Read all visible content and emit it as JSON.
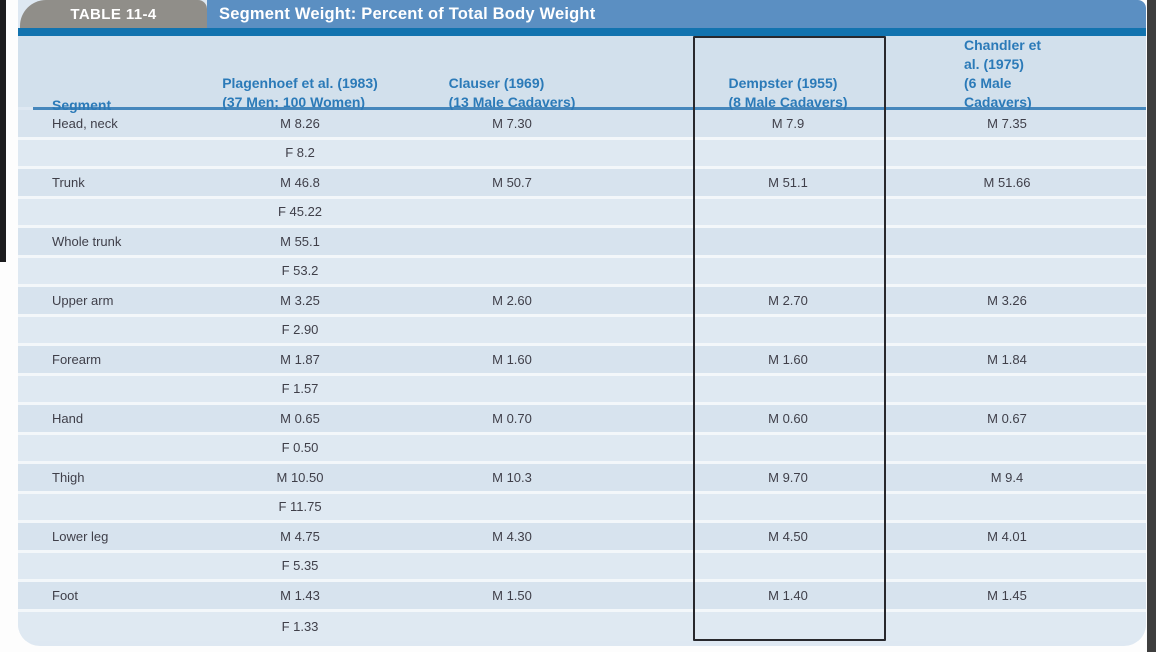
{
  "table": {
    "tab_label": "TABLE 11-4",
    "title": "Segment Weight: Percent of Total Body Weight",
    "columns": [
      {
        "line1": "Segment",
        "line2": ""
      },
      {
        "line1": "Plagenhoef et al. (1983)",
        "line2": "(37 Men; 100 Women)"
      },
      {
        "line1": "Clauser (1969)",
        "line2": "(13 Male Cadavers)"
      },
      {
        "line1": "Dempster (1955)",
        "line2": "(8 Male Cadavers)"
      },
      {
        "line1": "Chandler et al. (1975)",
        "line2": "(6 Male Cadavers)"
      }
    ],
    "rows": [
      [
        "Head, neck",
        "M 8.26",
        "M 7.30",
        "M 7.9",
        "M 7.35"
      ],
      [
        "",
        "F 8.2",
        "",
        "",
        ""
      ],
      [
        "Trunk",
        "M 46.8",
        "M 50.7",
        "M 51.1",
        "M 51.66"
      ],
      [
        "",
        "F 45.22",
        "",
        "",
        ""
      ],
      [
        "Whole trunk",
        "M 55.1",
        "",
        "",
        ""
      ],
      [
        "",
        "F 53.2",
        "",
        "",
        ""
      ],
      [
        "Upper arm",
        "M 3.25",
        "M 2.60",
        "M 2.70",
        "M 3.26"
      ],
      [
        "",
        "F 2.90",
        "",
        "",
        ""
      ],
      [
        "Forearm",
        "M 1.87",
        "M 1.60",
        "M 1.60",
        "M 1.84"
      ],
      [
        "",
        "F 1.57",
        "",
        "",
        ""
      ],
      [
        "Hand",
        "M 0.65",
        "M 0.70",
        "M 0.60",
        "M 0.67"
      ],
      [
        "",
        "F 0.50",
        "",
        "",
        ""
      ],
      [
        "Thigh",
        "M 10.50",
        "M 10.3",
        "M 9.70",
        "M 9.4"
      ],
      [
        "",
        "F 11.75",
        "",
        "",
        ""
      ],
      [
        "Lower leg",
        "M 4.75",
        "M 4.30",
        "M 4.50",
        "M 4.01"
      ],
      [
        "",
        "F 5.35",
        "",
        "",
        ""
      ],
      [
        "Foot",
        "M 1.43",
        "M 1.50",
        "M 1.40",
        "M 1.45"
      ],
      [
        "",
        "F 1.33",
        "",
        "",
        ""
      ]
    ],
    "annotation": {
      "highlighted_column": "Dempster (1955)"
    },
    "colors": {
      "title_bar": "#5b8fc2",
      "tab": "#908e89",
      "divider": "#1273af",
      "header_bg": "#d2e0ec",
      "header_text": "#2b7ab8",
      "row_dark": "#d7e3ee",
      "row_light": "#dfe9f2",
      "body_text": "#3f3f49",
      "highlight_border": "#28282d"
    }
  }
}
